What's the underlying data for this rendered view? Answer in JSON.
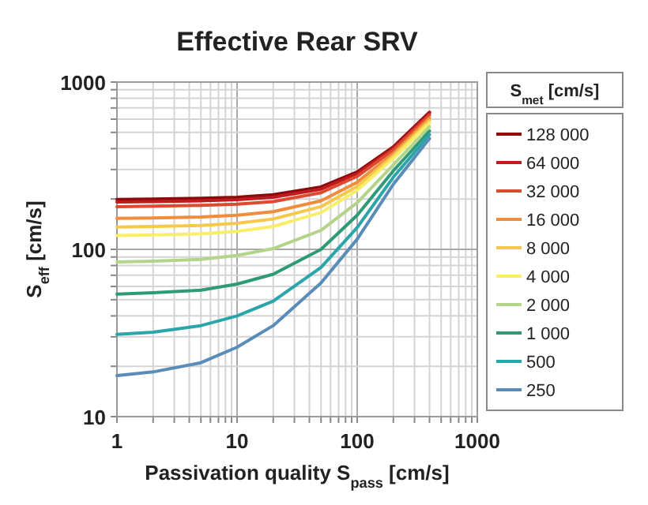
{
  "chart_data": {
    "type": "line",
    "title": "Effective Rear SRV",
    "xlabel": "Passivation quality S$_{pass}$ [cm/s]",
    "ylabel": "S$_{eff}$ [cm/s]",
    "legend_title": "S$_{met}$ [cm/s]",
    "log": "xy",
    "grid": true,
    "legend": "right",
    "marker": "none",
    "line_style": "solid",
    "xlim": [
      1,
      1000
    ],
    "ylim": [
      10,
      1000
    ],
    "xticks": [
      1,
      {
        "value": 2,
        "label": null
      },
      {
        "value": 3,
        "label": null
      },
      {
        "value": 4,
        "label": null
      },
      {
        "value": 5,
        "label": null
      },
      {
        "value": 6,
        "label": null
      },
      {
        "value": 7,
        "label": null
      },
      {
        "value": 8,
        "label": null
      },
      {
        "value": 9,
        "label": null
      },
      10,
      {
        "value": 20,
        "label": null
      },
      {
        "value": 30,
        "label": null
      },
      {
        "value": 40,
        "label": null
      },
      {
        "value": 50,
        "label": null
      },
      {
        "value": 60,
        "label": null
      },
      {
        "value": 70,
        "label": null
      },
      {
        "value": 80,
        "label": null
      },
      {
        "value": 90,
        "label": null
      },
      100,
      {
        "value": 200,
        "label": null
      },
      {
        "value": 300,
        "label": null
      },
      {
        "value": 400,
        "label": null
      },
      {
        "value": 500,
        "label": null
      },
      {
        "value": 600,
        "label": null
      },
      {
        "value": 700,
        "label": null
      },
      {
        "value": 800,
        "label": null
      },
      {
        "value": 900,
        "label": null
      },
      1000
    ],
    "yticks": [
      10,
      {
        "value": 20,
        "label": null
      },
      {
        "value": 30,
        "label": null
      },
      {
        "value": 40,
        "label": null
      },
      {
        "value": 50,
        "label": null
      },
      {
        "value": 60,
        "label": null
      },
      {
        "value": 70,
        "label": null
      },
      {
        "value": 80,
        "label": null
      },
      {
        "value": 90,
        "label": null
      },
      100,
      {
        "value": 200,
        "label": null
      },
      {
        "value": 300,
        "label": null
      },
      {
        "value": 400,
        "label": null
      },
      {
        "value": 500,
        "label": null
      },
      {
        "value": 600,
        "label": null
      },
      {
        "value": 700,
        "label": null
      },
      {
        "value": 800,
        "label": null
      },
      {
        "value": 900,
        "label": null
      },
      1000
    ],
    "x": [
      1,
      2,
      5,
      10,
      20,
      50,
      100,
      200,
      400
    ],
    "series": [
      {
        "name": "128 000",
        "color": "#8b0a0a",
        "values": [
          199,
          200,
          202,
          205,
          212,
          236,
          290,
          410,
          660
        ]
      },
      {
        "name": "64 000",
        "color": "#c01a1e",
        "values": [
          192,
          193,
          195,
          198,
          205,
          229,
          283,
          402,
          650
        ]
      },
      {
        "name": "32 000",
        "color": "#dc4a30",
        "values": [
          180,
          181,
          183,
          186,
          193,
          218,
          273,
          392,
          635
        ]
      },
      {
        "name": "16 000",
        "color": "#f08c3c",
        "values": [
          153,
          154,
          156,
          160,
          168,
          195,
          252,
          375,
          610
        ]
      },
      {
        "name": "8 000",
        "color": "#f6c84c",
        "values": [
          136,
          137,
          139,
          143,
          152,
          180,
          238,
          362,
          590
        ]
      },
      {
        "name": "4 000",
        "color": "#f8ee6a",
        "values": [
          121,
          122,
          124,
          128,
          137,
          166,
          225,
          350,
          570
        ]
      },
      {
        "name": "2 000",
        "color": "#b4d48a",
        "values": [
          84,
          85,
          87,
          92,
          101,
          130,
          190,
          320,
          540
        ]
      },
      {
        "name": "1 000",
        "color": "#2e9a78",
        "values": [
          54,
          55,
          57,
          62,
          71,
          100,
          160,
          295,
          510
        ]
      },
      {
        "name": "500",
        "color": "#2aa6aa",
        "values": [
          31,
          32,
          35,
          40,
          49,
          78,
          135,
          270,
          485
        ]
      },
      {
        "name": "250",
        "color": "#5a8cb8",
        "values": [
          17.6,
          18.5,
          21,
          26,
          35,
          63,
          115,
          245,
          460
        ]
      }
    ]
  }
}
